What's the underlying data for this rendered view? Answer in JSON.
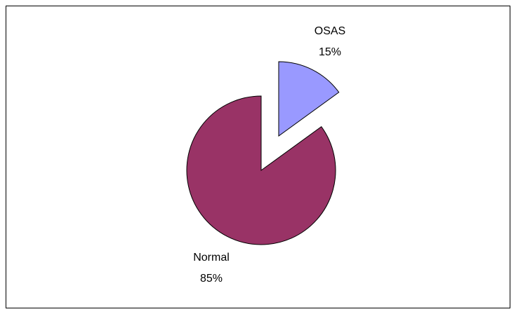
{
  "chart_data": {
    "type": "pie",
    "categories": [
      "OSAS",
      "Normal"
    ],
    "values": [
      15,
      85
    ],
    "value_labels": [
      "15%",
      "85%"
    ],
    "colors": [
      "#9999ff",
      "#993366"
    ]
  }
}
